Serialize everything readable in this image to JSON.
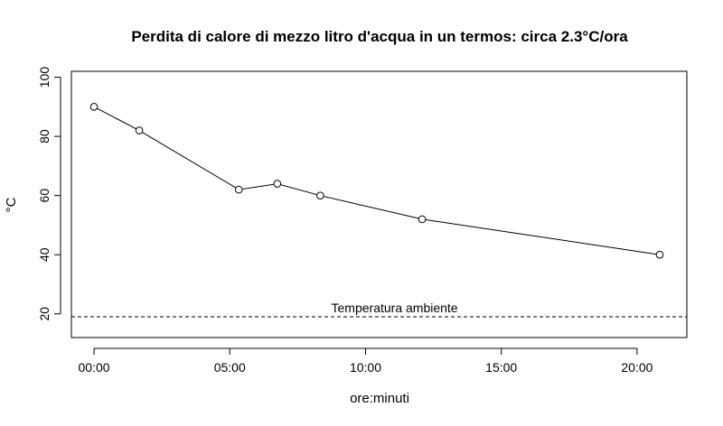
{
  "chart_data": {
    "type": "line",
    "title": "Perdita di calore di mezzo litro d'acqua in un termos: circa 2.3°C/ora",
    "xlabel": "ore:minuti",
    "ylabel": "°C",
    "xlim": [
      "-00:50",
      "21:50"
    ],
    "ylim": [
      12,
      102
    ],
    "x_ticks": [
      "00:00",
      "05:00",
      "10:00",
      "15:00",
      "20:00"
    ],
    "y_ticks": [
      20,
      40,
      60,
      80,
      100
    ],
    "grid": false,
    "series": [
      {
        "x": [
          "00:00",
          "01:40",
          "05:20",
          "06:45",
          "08:20",
          "12:05",
          "20:50"
        ],
        "y": [
          90,
          82,
          62,
          64,
          60,
          52,
          40
        ],
        "marker": "open-circle",
        "line": "solid",
        "color": "#000000"
      }
    ],
    "reference_line": {
      "y": 19,
      "style": "dashed",
      "label": "Temperatura ambiente"
    }
  }
}
